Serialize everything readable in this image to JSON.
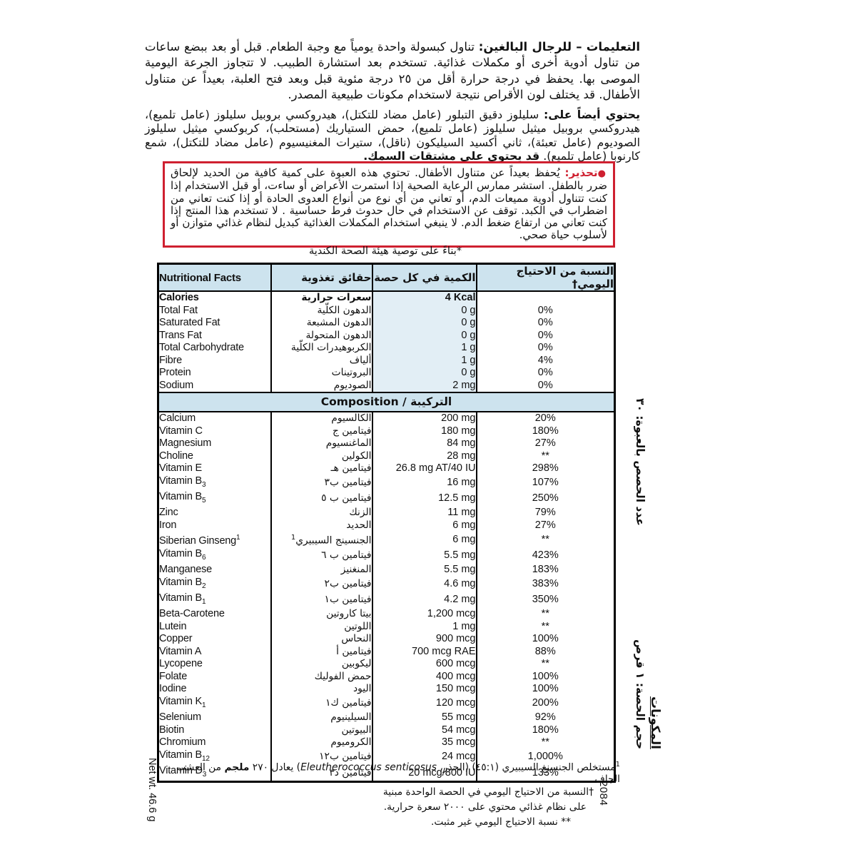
{
  "instructions": {
    "lead": "التعليمات – للرجال البالغين:",
    "text": " تناول كبسولة واحدة يومياً مع وجبة الطعام. قبل أو بعد ببضع ساعات من تناول أدوية أخرى أو مكملات غذائية. تستخدم بعد استشارة الطبيب. لا تتجاوز الجرعة اليومية الموصى بها. يحفظ في درجة حرارة أقل من ٢٥ درجة مئوية قبل وبعد فتح العلبة، بعيداً عن متناول الأطفال. قد يختلف لون الأقراص نتيجة لاستخدام مكونات طبيعية المصدر."
  },
  "also_contains": {
    "lead": "يحتوي أيضاً على:",
    "text": " سليلوز دقيق التبلور (عامل مضاد للتكتل)، هيدروكسي بروبيل سليلوز (عامل تلميع)، هيدروكسي بروبيل ميثيل سليلوز (عامل تلميع)، حمض الستياريك (مستحلب)، كربوكسي ميثيل سليلوز الصوديوم (عامل تعبئة)، ثاني أكسيد السيليكون (ناقل)، ستيرات المغنيسيوم (عامل مضاد للتكتل)، شمع كارنوبا (عامل تلميع). ",
    "bold_tail": "قد يحتوي على مشتقات السمك."
  },
  "warning": {
    "bullet": "●",
    "label": "تحذير:",
    "text": " يُحفظ بعيداً عن متناول الأطفال. تحتوي هذه العبوة على كمية كافية من الحديد لإلحاق ضرر بالطفل. استشر ممارس الرعاية الصحية إذا استمرت الأعراض أو ساءت، أو قبل الاستخدام إذا كنت تتناول أدوية مميعات الدم، أو تعاني من أي نوع من أنواع العدوى الحادة أو إذا كنت تعاني من اضطراب في الكبد. توقف عن الاستخدام في حال حدوث فرط حساسية . لا تستخدم هذا المنتج إذا كنت تعاني من ارتفاع ضغط الدم. لا ينبغي استخدام المكملات الغذائية كبديل لنظام غذائي متوازن أو لأسلوب حياة صحي."
  },
  "canada_note": "*بناءً على توصية هيئة الصحة الكندية",
  "table": {
    "headers": {
      "en": "Nutritional Facts",
      "ar": "حقائق تغذوية",
      "amount": "الكمية في كل حصة",
      "dv": "النسبة من الاحتياج اليومي†"
    },
    "composition_label": "Composition / التركيبة",
    "nutrition_rows": [
      {
        "en": "Calories",
        "ar": "سعرات حرارية",
        "amt": "4 Kcal",
        "dv": "",
        "bold": true
      },
      {
        "en": "Total Fat",
        "ar": "الدهون الكلّية",
        "amt": "0 g",
        "dv": "0%"
      },
      {
        "en": "Saturated Fat",
        "ar": "الدهون المشبعة",
        "amt": "0 g",
        "dv": "0%",
        "indent": true
      },
      {
        "en": "Trans Fat",
        "ar": "الدهون المتحولة",
        "amt": "0 g",
        "dv": "0%",
        "indent": true
      },
      {
        "en": "Total Carbohydrate",
        "ar": "الكربوهيدرات الكلّية",
        "amt": "1 g",
        "dv": "0%"
      },
      {
        "en": "Fibre",
        "ar": "ألياف",
        "amt": "1 g",
        "dv": "4%",
        "indent": true
      },
      {
        "en": "Protein",
        "ar": "البروتينات",
        "amt": "0 g",
        "dv": "0%"
      },
      {
        "en": "Sodium",
        "ar": "الصوديوم",
        "amt": "2 mg",
        "dv": "0%"
      }
    ],
    "composition_rows": [
      {
        "en": "Calcium",
        "ar": "الكالسيوم",
        "amt": "200 mg",
        "dv": "20%"
      },
      {
        "en": "Vitamin C",
        "ar": "فيتامين ج",
        "amt": "180 mg",
        "dv": "180%"
      },
      {
        "en": "Magnesium",
        "ar": "الماغنسيوم",
        "amt": "84 mg",
        "dv": "27%"
      },
      {
        "en": "Choline",
        "ar": "الكولين",
        "amt": "28 mg",
        "dv": "**"
      },
      {
        "en": "Vitamin E",
        "ar": "فيتامين هـ",
        "amt": "26.8 mg AT/40 IU",
        "dv": "298%"
      },
      {
        "en": "Vitamin B",
        "en_sub": "3",
        "ar": "فيتامين ب٣",
        "amt": "16 mg",
        "dv": "107%"
      },
      {
        "en": "Vitamin B",
        "en_sub": "5",
        "ar": "فيتامين ب ٥",
        "amt": "12.5 mg",
        "dv": "250%"
      },
      {
        "en": "Zinc",
        "ar": "الزنك",
        "amt": "11 mg",
        "dv": "79%"
      },
      {
        "en": "Iron",
        "ar": "الحديد",
        "amt": "6 mg",
        "dv": "27%"
      },
      {
        "en": "Siberian Ginseng",
        "en_sup": "1",
        "ar": "الجنسينج السيبيري",
        "ar_sup": "1",
        "amt": "6 mg",
        "dv": "**"
      },
      {
        "en": "Vitamin B",
        "en_sub": "6",
        "ar": "فيتامين ب ٦",
        "amt": "5.5 mg",
        "dv": "423%"
      },
      {
        "en": "Manganese",
        "ar": "المنغنيز",
        "amt": "5.5 mg",
        "dv": "183%"
      },
      {
        "en": "Vitamin B",
        "en_sub": "2",
        "ar": "فيتامين ب٢",
        "amt": "4.6 mg",
        "dv": "383%"
      },
      {
        "en": "Vitamin B",
        "en_sub": "1",
        "ar": "فيتامين ب١",
        "amt": "4.2 mg",
        "dv": "350%"
      },
      {
        "en": "Beta-Carotene",
        "ar": "بيتا كاروتين",
        "amt": "1,200 mcg",
        "dv": "**"
      },
      {
        "en": "Lutein",
        "ar": "اللوتين",
        "amt": "1 mg",
        "dv": "**"
      },
      {
        "en": "Copper",
        "ar": "النحاس",
        "amt": "900 mcg",
        "dv": "100%"
      },
      {
        "en": "Vitamin A",
        "ar": "فيتامين أ",
        "amt": "700 mcg RAE",
        "dv": "88%"
      },
      {
        "en": "Lycopene",
        "ar": "ليكوبين",
        "amt": "600 mcg",
        "dv": "**"
      },
      {
        "en": "Folate",
        "ar": "حمض الفوليك",
        "amt": "400 mcg",
        "dv": "100%"
      },
      {
        "en": "Iodine",
        "ar": "اليود",
        "amt": "150 mcg",
        "dv": "100%"
      },
      {
        "en": "Vitamin K",
        "en_sub": "1",
        "ar": "فيتامين ك١",
        "amt": "120 mcg",
        "dv": "200%"
      },
      {
        "en": "Selenium",
        "ar": "السيلينيوم",
        "amt": "55 mcg",
        "dv": "92%"
      },
      {
        "en": "Biotin",
        "ar": "البيوتين",
        "amt": "54 mcg",
        "dv": "180%"
      },
      {
        "en": "Chromium",
        "ar": "الكروميوم",
        "amt": "35 mcg",
        "dv": "**"
      },
      {
        "en": "Vitamin B",
        "en_sub": "12",
        "ar": "فيتامين ب١٢",
        "amt": "24 mcg",
        "dv": "1,000%"
      },
      {
        "en": "Vitamin D",
        "en_sub": "3",
        "ar": "فيتامين د٣",
        "amt": "20 mcg/800 IU",
        "dv": "133%"
      }
    ]
  },
  "footnote1": {
    "sup": "1",
    "pre": "مستخلص الجنسنغ السيبيري (٤٥:١) (الجذر، ",
    "latin": "Eleutherococcus senticosus",
    "mid": ") يعادل ٢٧٠ ",
    "bold": "ملجم",
    "post": " من العشب الجاف."
  },
  "footnote_dagger_line1": "†النسبة من الاحتياج اليومي في الحصة الواحدة مبنية",
  "footnote_dagger_line2": "على نظام غذائي محتوي على ٢٠٠٠ سعرة حرارية.",
  "footnote_asterisks": "** نسبة الاحتياج اليومي غير مثبت.",
  "side_panel": {
    "title": "المكونات",
    "serving_size": "حجم الحصة: ١ قرص",
    "servings_per_container": "عدد الحصص بالعبوة: ٣٠"
  },
  "net_weight": "Net wt. 46.6 g",
  "code": "2084"
}
